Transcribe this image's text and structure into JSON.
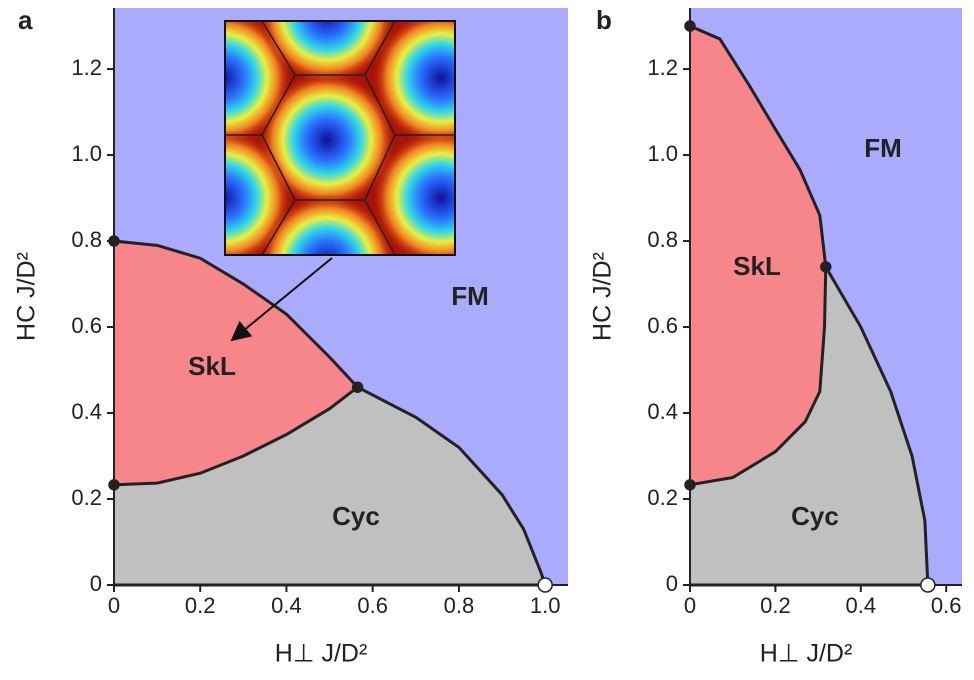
{
  "chart_data": [
    {
      "type": "phase",
      "panel": "a",
      "xlabel": "H⊥ J/D²",
      "ylabel": "HC J/D²",
      "xlim": [
        0,
        1.053
      ],
      "ylim": [
        0,
        1.342
      ],
      "xticks": [
        0,
        0.2,
        0.4,
        0.6,
        0.8,
        {
          "value": 1,
          "label": "1.0"
        }
      ],
      "yticks": [
        0,
        0.2,
        0.4,
        0.6,
        0.8,
        {
          "value": 1,
          "label": "1.0"
        },
        1.2
      ],
      "regions": [
        {
          "label": "FM",
          "color": "#aaaaff"
        },
        {
          "label": "SkL",
          "color": "#f7868b"
        },
        {
          "label": "Cyc",
          "color": "#c0c0c0"
        }
      ],
      "boundaries": [
        {
          "x": [
            0,
            0.1,
            0.2,
            0.3,
            0.4,
            0.5,
            0.565
          ],
          "y": [
            0.8,
            0.79,
            0.76,
            0.7,
            0.63,
            0.53,
            0.46
          ]
        },
        {
          "x": [
            0,
            0.1,
            0.2,
            0.3,
            0.4,
            0.5,
            0.565
          ],
          "y": [
            0.233,
            0.237,
            0.26,
            0.3,
            0.35,
            0.41,
            0.46
          ]
        },
        {
          "x": [
            0.565,
            0.7,
            0.8,
            0.9,
            0.95,
            0.99,
            1.0
          ],
          "y": [
            0.46,
            0.39,
            0.32,
            0.21,
            0.13,
            0.03,
            0
          ]
        }
      ],
      "points": [
        {
          "x": 0,
          "y": 0.8,
          "fill": "#222222"
        },
        {
          "x": 0,
          "y": 0.233,
          "fill": "#222222"
        },
        {
          "x": 0.565,
          "y": 0.46,
          "fill": "#222222"
        },
        {
          "x": 1.0,
          "y": 0,
          "fill": "#ffffff"
        }
      ]
    },
    {
      "type": "phase",
      "panel": "b",
      "xlabel": "H⊥ J/D²",
      "ylabel": "HC J/D²",
      "xlim": [
        0,
        0.637
      ],
      "ylim": [
        0,
        1.342
      ],
      "xticks": [
        0,
        0.2,
        0.4,
        0.6
      ],
      "yticks": [
        0,
        0.2,
        0.4,
        0.6,
        0.8,
        {
          "value": 1,
          "label": "1.0"
        },
        1.2
      ],
      "regions": [
        {
          "label": "FM",
          "color": "#aaaaff"
        },
        {
          "label": "SkL",
          "color": "#f7868b"
        },
        {
          "label": "Cyc",
          "color": "#c0c0c0"
        }
      ],
      "boundaries": [
        {
          "x": [
            0,
            0.07,
            0.14,
            0.2,
            0.258,
            0.304,
            0.318
          ],
          "y": [
            1.3,
            1.27,
            1.16,
            1.06,
            0.965,
            0.86,
            0.74
          ]
        },
        {
          "x": [
            0,
            0.1,
            0.2,
            0.27,
            0.304,
            0.315,
            0.318
          ],
          "y": [
            0.233,
            0.25,
            0.31,
            0.38,
            0.45,
            0.6,
            0.74
          ]
        },
        {
          "x": [
            0.318,
            0.4,
            0.47,
            0.52,
            0.55,
            0.557
          ],
          "y": [
            0.74,
            0.6,
            0.45,
            0.3,
            0.15,
            0
          ]
        }
      ],
      "points": [
        {
          "x": 0,
          "y": 1.3,
          "fill": "#222222"
        },
        {
          "x": 0,
          "y": 0.233,
          "fill": "#222222"
        },
        {
          "x": 0.318,
          "y": 0.74,
          "fill": "#222222"
        },
        {
          "x": 0.557,
          "y": 0,
          "fill": "#ffffff"
        }
      ]
    }
  ]
}
